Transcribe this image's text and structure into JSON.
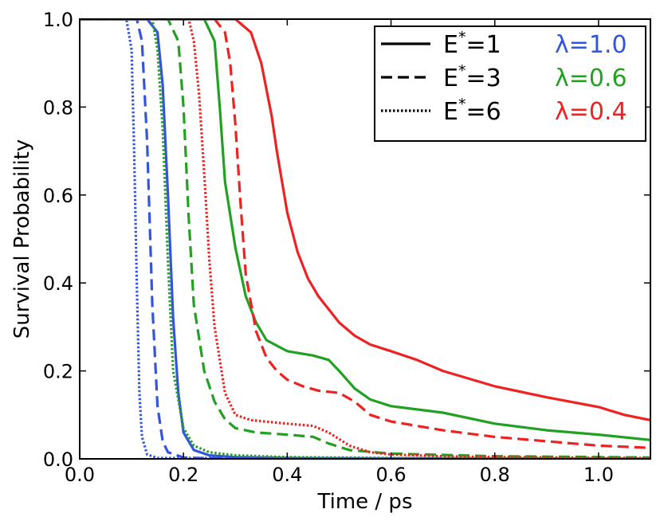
{
  "chart_data": {
    "type": "line",
    "title": "",
    "xlabel": "Time / ps",
    "ylabel": "Survival Probability",
    "xlim": [
      0.0,
      1.1
    ],
    "ylim": [
      0.0,
      1.0
    ],
    "xticks": [
      0.0,
      0.2,
      0.4,
      0.6,
      0.8,
      1.0
    ],
    "xtick_labels": [
      "0.0",
      "0.2",
      "0.4",
      "0.6",
      "0.8",
      "1.0"
    ],
    "yticks": [
      0.0,
      0.2,
      0.4,
      0.6,
      0.8,
      1.0
    ],
    "ytick_labels": [
      "0.0",
      "0.2",
      "0.4",
      "0.6",
      "0.8",
      "1.0"
    ],
    "grid": false,
    "legend_position": "top-right",
    "legend": {
      "styles": [
        {
          "label": "E",
          "sup": "*",
          "value": "=1",
          "linestyle": "solid"
        },
        {
          "label": "E",
          "sup": "*",
          "value": "=3",
          "linestyle": "dashed"
        },
        {
          "label": "E",
          "sup": "*",
          "value": "=6",
          "linestyle": "dotted"
        }
      ],
      "lambdas": [
        {
          "label": "λ=1.0",
          "color": "#3355dd"
        },
        {
          "label": "λ=0.6",
          "color": "#22a022"
        },
        {
          "label": "λ=0.4",
          "color": "#ee2222"
        }
      ]
    },
    "series": [
      {
        "name": "E*=1, λ=1.0",
        "color": "#3355dd",
        "linestyle": "solid",
        "x": [
          0,
          0.13,
          0.15,
          0.16,
          0.17,
          0.18,
          0.19,
          0.2,
          0.22,
          0.25,
          0.3,
          0.4,
          0.5,
          0.7,
          1.1
        ],
        "y": [
          1.0,
          1.0,
          0.97,
          0.85,
          0.6,
          0.32,
          0.15,
          0.06,
          0.02,
          0.008,
          0.004,
          0.002,
          0.001,
          0.0005,
          0.0
        ]
      },
      {
        "name": "E*=3, λ=1.0",
        "color": "#3355dd",
        "linestyle": "dashed",
        "x": [
          0,
          0.11,
          0.12,
          0.13,
          0.14,
          0.15,
          0.16,
          0.17,
          0.2,
          0.25,
          1.1
        ],
        "y": [
          1.0,
          1.0,
          0.95,
          0.72,
          0.35,
          0.12,
          0.04,
          0.015,
          0.003,
          0.001,
          0.0
        ]
      },
      {
        "name": "E*=6, λ=1.0",
        "color": "#3355dd",
        "linestyle": "dotted",
        "x": [
          0,
          0.09,
          0.1,
          0.105,
          0.11,
          0.115,
          0.12,
          0.13,
          0.15,
          1.1
        ],
        "y": [
          1.0,
          1.0,
          0.93,
          0.7,
          0.4,
          0.15,
          0.05,
          0.01,
          0.002,
          0.0
        ]
      },
      {
        "name": "E*=1, λ=0.6",
        "color": "#22a022",
        "linestyle": "solid",
        "x": [
          0,
          0.24,
          0.26,
          0.27,
          0.28,
          0.3,
          0.32,
          0.34,
          0.36,
          0.4,
          0.45,
          0.48,
          0.5,
          0.53,
          0.56,
          0.6,
          0.7,
          0.8,
          0.9,
          1.0,
          1.1
        ],
        "y": [
          1.0,
          1.0,
          0.95,
          0.8,
          0.63,
          0.48,
          0.37,
          0.31,
          0.27,
          0.245,
          0.235,
          0.225,
          0.2,
          0.16,
          0.135,
          0.12,
          0.105,
          0.08,
          0.065,
          0.055,
          0.043
        ]
      },
      {
        "name": "E*=3, λ=0.6",
        "color": "#22a022",
        "linestyle": "dashed",
        "x": [
          0,
          0.17,
          0.19,
          0.2,
          0.21,
          0.22,
          0.24,
          0.26,
          0.28,
          0.3,
          0.34,
          0.4,
          0.45,
          0.48,
          0.52,
          0.6,
          0.8,
          1.1
        ],
        "y": [
          1.0,
          1.0,
          0.95,
          0.8,
          0.55,
          0.35,
          0.2,
          0.13,
          0.09,
          0.07,
          0.06,
          0.055,
          0.05,
          0.035,
          0.02,
          0.012,
          0.006,
          0.003
        ]
      },
      {
        "name": "E*=6, λ=0.6",
        "color": "#22a022",
        "linestyle": "dotted",
        "x": [
          0,
          0.14,
          0.15,
          0.16,
          0.17,
          0.18,
          0.2,
          0.22,
          0.25,
          0.3,
          0.4,
          0.6,
          1.1
        ],
        "y": [
          1.0,
          1.0,
          0.93,
          0.75,
          0.45,
          0.2,
          0.07,
          0.03,
          0.015,
          0.008,
          0.004,
          0.002,
          0.0
        ]
      },
      {
        "name": "E*=1, λ=0.4",
        "color": "#ee2222",
        "linestyle": "solid",
        "x": [
          0,
          0.3,
          0.33,
          0.35,
          0.37,
          0.38,
          0.4,
          0.42,
          0.44,
          0.46,
          0.48,
          0.5,
          0.53,
          0.56,
          0.6,
          0.65,
          0.7,
          0.8,
          0.9,
          1.0,
          1.05,
          1.1
        ],
        "y": [
          1.0,
          1.0,
          0.97,
          0.9,
          0.78,
          0.7,
          0.56,
          0.47,
          0.41,
          0.37,
          0.34,
          0.31,
          0.28,
          0.26,
          0.245,
          0.225,
          0.2,
          0.165,
          0.14,
          0.118,
          0.1,
          0.088
        ]
      },
      {
        "name": "E*=3, λ=0.4",
        "color": "#ee2222",
        "linestyle": "dashed",
        "x": [
          0,
          0.26,
          0.28,
          0.29,
          0.3,
          0.31,
          0.32,
          0.34,
          0.36,
          0.38,
          0.4,
          0.43,
          0.46,
          0.5,
          0.53,
          0.56,
          0.6,
          0.7,
          0.8,
          0.9,
          1.0,
          1.1
        ],
        "y": [
          1.0,
          1.0,
          0.97,
          0.9,
          0.76,
          0.58,
          0.42,
          0.29,
          0.23,
          0.2,
          0.18,
          0.165,
          0.155,
          0.15,
          0.13,
          0.1,
          0.085,
          0.065,
          0.05,
          0.04,
          0.03,
          0.025
        ]
      },
      {
        "name": "E*=6, λ=0.4",
        "color": "#ee2222",
        "linestyle": "dotted",
        "x": [
          0,
          0.21,
          0.22,
          0.23,
          0.24,
          0.25,
          0.26,
          0.28,
          0.3,
          0.33,
          0.4,
          0.45,
          0.48,
          0.52,
          0.56,
          0.6,
          0.7,
          0.8,
          1.1
        ],
        "y": [
          1.0,
          1.0,
          0.95,
          0.83,
          0.65,
          0.45,
          0.3,
          0.15,
          0.1,
          0.088,
          0.08,
          0.075,
          0.06,
          0.03,
          0.015,
          0.01,
          0.006,
          0.004,
          0.002
        ]
      }
    ]
  }
}
